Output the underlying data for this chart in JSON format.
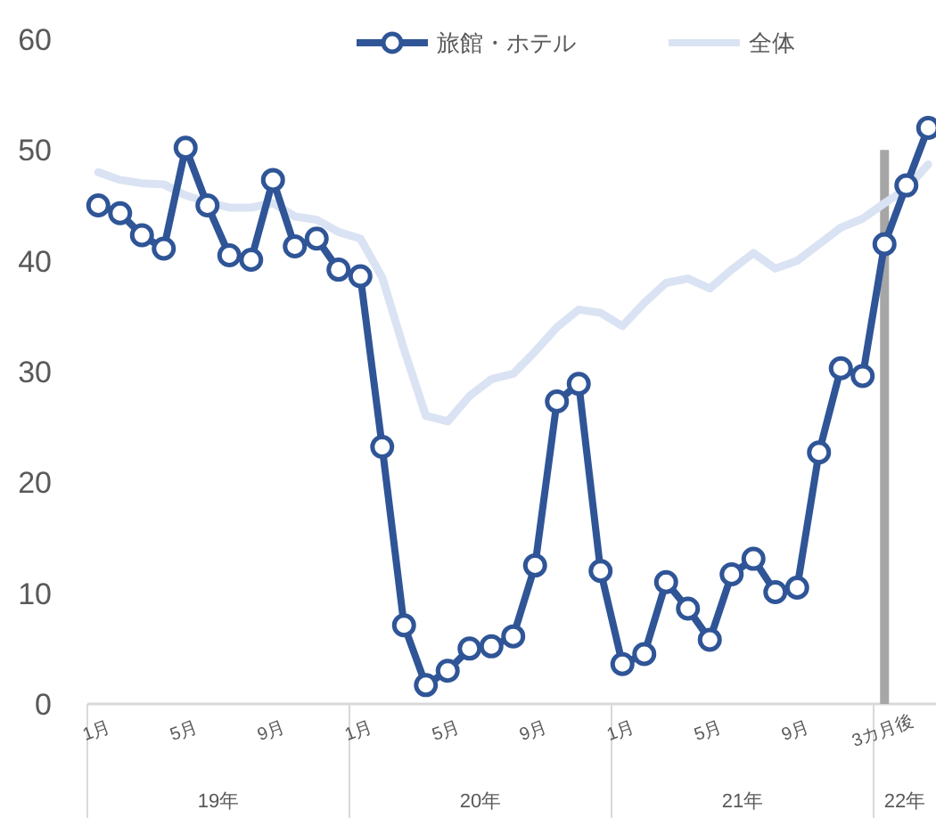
{
  "chart_data": {
    "type": "line",
    "categories": [
      "1月",
      null,
      null,
      null,
      "5月",
      null,
      null,
      null,
      "9月",
      null,
      null,
      null,
      "1月",
      null,
      null,
      null,
      "5月",
      null,
      null,
      null,
      "9月",
      null,
      null,
      null,
      "1月",
      null,
      null,
      null,
      "5月",
      null,
      null,
      null,
      "9月",
      null,
      null,
      null,
      "3カ月後",
      null,
      null
    ],
    "series": [
      {
        "name": "旅館・ホテル",
        "color": "#2f5597",
        "marker": "circle",
        "values": [
          45,
          44.3,
          42.3,
          41.1,
          50.2,
          45,
          40.5,
          40.1,
          47.3,
          41.3,
          42,
          39.2,
          38.6,
          23.2,
          7.1,
          1.7,
          3,
          5,
          5.2,
          6.1,
          12.5,
          27.3,
          28.9,
          12,
          3.6,
          4.5,
          11,
          8.6,
          5.8,
          11.7,
          13.1,
          10.1,
          10.5,
          22.7,
          30.3,
          29.6,
          41.5,
          46.8,
          52
        ]
      },
      {
        "name": "全体",
        "color": "#dae3f3",
        "marker": "none",
        "values": [
          48,
          47.3,
          47,
          46.9,
          45.9,
          45.3,
          44.8,
          44.8,
          45.2,
          44,
          43.7,
          42.6,
          42,
          38.5,
          32,
          26,
          25.5,
          27.8,
          29.3,
          29.8,
          31.8,
          34,
          35.6,
          35.3,
          34.1,
          36.2,
          38,
          38.4,
          37.5,
          39.2,
          40.7,
          39.3,
          40,
          41.5,
          43,
          43.8,
          45.2,
          46.5,
          48.7
        ]
      }
    ],
    "ylim": [
      0,
      60
    ],
    "yticks": [
      0,
      10,
      20,
      30,
      40,
      50,
      60
    ],
    "ref_lines": [
      {
        "axis": "x",
        "value": "3カ月後",
        "color": "#a6a6a6"
      }
    ],
    "annotations": [
      "19年",
      "20年",
      "21年",
      "22年"
    ],
    "legend": "top right",
    "grid": false
  }
}
